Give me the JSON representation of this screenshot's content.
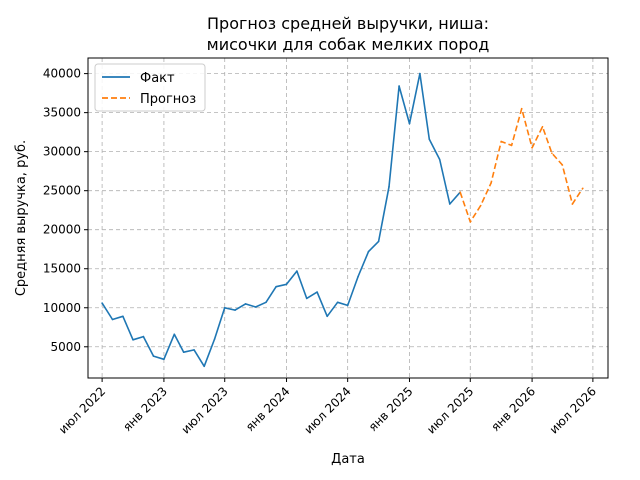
{
  "chart_data": {
    "type": "line",
    "title_lines": [
      "Прогноз средней выручки, ниша:",
      "мисочки для собак мелких пород"
    ],
    "xlabel": "Дата",
    "ylabel": "Средняя выручка, руб.",
    "ylim": [
      1000,
      42000
    ],
    "xlim": [
      "2022-05-20",
      "2026-08-15"
    ],
    "y_ticks": [
      5000,
      10000,
      15000,
      20000,
      25000,
      30000,
      35000,
      40000
    ],
    "x_ticks": [
      {
        "date": "2022-07-01",
        "label": "июл 2022"
      },
      {
        "date": "2023-01-01",
        "label": "янв 2023"
      },
      {
        "date": "2023-07-01",
        "label": "июл 2023"
      },
      {
        "date": "2024-01-01",
        "label": "янв 2024"
      },
      {
        "date": "2024-07-01",
        "label": "июл 2024"
      },
      {
        "date": "2025-01-01",
        "label": "янв 2025"
      },
      {
        "date": "2025-07-01",
        "label": "июл 2025"
      },
      {
        "date": "2026-01-01",
        "label": "янв 2026"
      },
      {
        "date": "2026-07-01",
        "label": "июл 2026"
      }
    ],
    "grid": true,
    "legend_position": "top-left",
    "series": [
      {
        "name": "Факт",
        "color": "#1f77b4",
        "style": "solid",
        "points": [
          [
            "2022-07-01",
            10600
          ],
          [
            "2022-08-01",
            8500
          ],
          [
            "2022-09-01",
            8900
          ],
          [
            "2022-10-01",
            5900
          ],
          [
            "2022-11-01",
            6300
          ],
          [
            "2022-12-01",
            3800
          ],
          [
            "2023-01-01",
            3400
          ],
          [
            "2023-02-01",
            6600
          ],
          [
            "2023-03-01",
            4300
          ],
          [
            "2023-04-01",
            4600
          ],
          [
            "2023-05-01",
            2500
          ],
          [
            "2023-06-01",
            6000
          ],
          [
            "2023-07-01",
            10000
          ],
          [
            "2023-08-01",
            9700
          ],
          [
            "2023-09-01",
            10500
          ],
          [
            "2023-10-01",
            10100
          ],
          [
            "2023-11-01",
            10700
          ],
          [
            "2023-12-01",
            12700
          ],
          [
            "2024-01-01",
            13000
          ],
          [
            "2024-02-01",
            14700
          ],
          [
            "2024-03-01",
            11200
          ],
          [
            "2024-04-01",
            12000
          ],
          [
            "2024-05-01",
            8900
          ],
          [
            "2024-06-01",
            10700
          ],
          [
            "2024-07-01",
            10300
          ],
          [
            "2024-08-01",
            14000
          ],
          [
            "2024-09-01",
            17200
          ],
          [
            "2024-10-01",
            18500
          ],
          [
            "2024-11-01",
            25500
          ],
          [
            "2024-12-01",
            38400
          ],
          [
            "2025-01-01",
            33600
          ],
          [
            "2025-02-01",
            40000
          ],
          [
            "2025-03-01",
            31600
          ],
          [
            "2025-04-01",
            29000
          ],
          [
            "2025-05-01",
            23300
          ],
          [
            "2025-06-01",
            24800
          ]
        ]
      },
      {
        "name": "Прогноз",
        "color": "#ff7f0e",
        "style": "dashed",
        "points": [
          [
            "2025-06-01",
            24800
          ],
          [
            "2025-07-01",
            21000
          ],
          [
            "2025-08-01",
            23100
          ],
          [
            "2025-09-01",
            26000
          ],
          [
            "2025-10-01",
            31300
          ],
          [
            "2025-11-01",
            30800
          ],
          [
            "2025-12-01",
            35500
          ],
          [
            "2026-01-01",
            30500
          ],
          [
            "2026-02-01",
            33200
          ],
          [
            "2026-03-01",
            29800
          ],
          [
            "2026-04-01",
            28300
          ],
          [
            "2026-05-01",
            23300
          ],
          [
            "2026-06-01",
            25300
          ]
        ]
      }
    ]
  }
}
